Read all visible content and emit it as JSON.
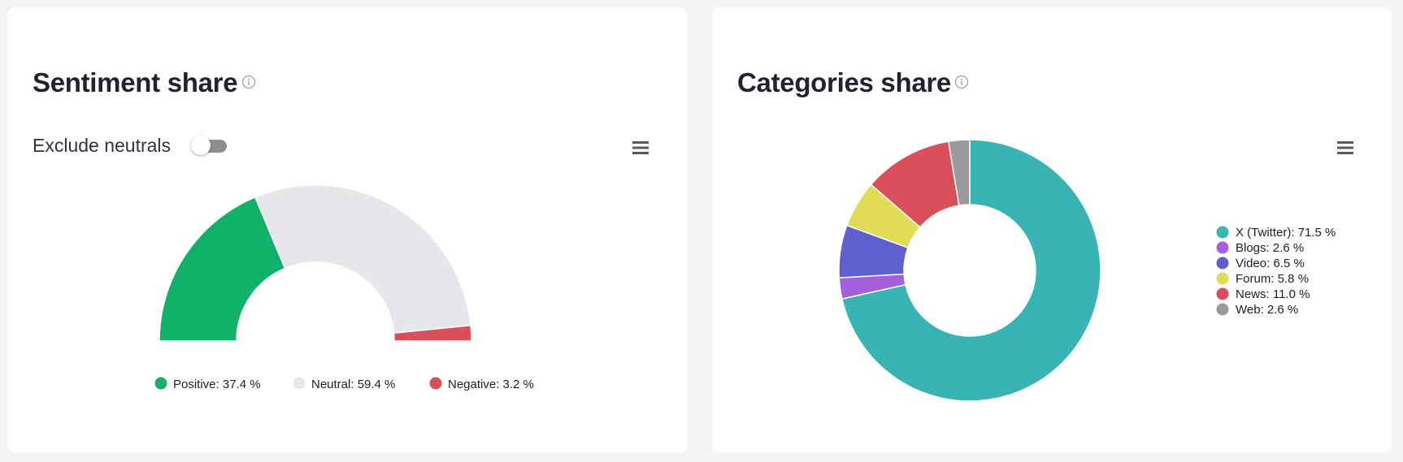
{
  "sentiment": {
    "title": "Sentiment share",
    "toggle_label": "Exclude neutrals",
    "toggle_on": false,
    "colors": {
      "positive": "#10b26a",
      "neutral": "#e5e7ea",
      "negative": "#d9505a"
    },
    "legend": [
      {
        "text": "Positive: 37.4 %",
        "color": "#10b26a"
      },
      {
        "text": "Neutral: 59.4 %",
        "color": "#e5e7ea"
      },
      {
        "text": "Negative: 3.2 %",
        "color": "#d9505a"
      }
    ]
  },
  "categories": {
    "title": "Categories share",
    "legend": [
      {
        "text": "X (Twitter): 71.5 %",
        "color": "#38b4b4"
      },
      {
        "text": "Blogs: 2.6 %",
        "color": "#a45fdd"
      },
      {
        "text": "Video: 6.5 %",
        "color": "#5f5fcd"
      },
      {
        "text": "Forum: 5.8 %",
        "color": "#e0dc55"
      },
      {
        "text": "News: 11.0 %",
        "color": "#d9505a"
      },
      {
        "text": "Web: 2.6 %",
        "color": "#9a9a9a"
      }
    ]
  },
  "chart_data": [
    {
      "type": "pie",
      "subtype": "semi-donut",
      "title": "Sentiment share",
      "categories": [
        "Positive",
        "Neutral",
        "Negative"
      ],
      "values": [
        37.4,
        59.4,
        3.2
      ],
      "unit": "%",
      "colors": [
        "#10b26a",
        "#e5e7ea",
        "#d9505a"
      ],
      "legend_position": "bottom"
    },
    {
      "type": "pie",
      "subtype": "donut",
      "title": "Categories share",
      "categories": [
        "X (Twitter)",
        "Blogs",
        "Video",
        "Forum",
        "News",
        "Web"
      ],
      "values": [
        71.5,
        2.6,
        6.5,
        5.8,
        11.0,
        2.6
      ],
      "unit": "%",
      "colors": [
        "#38b4b4",
        "#a45fdd",
        "#5f5fcd",
        "#e0dc55",
        "#d9505a",
        "#9a9a9a"
      ],
      "legend_position": "right"
    }
  ]
}
